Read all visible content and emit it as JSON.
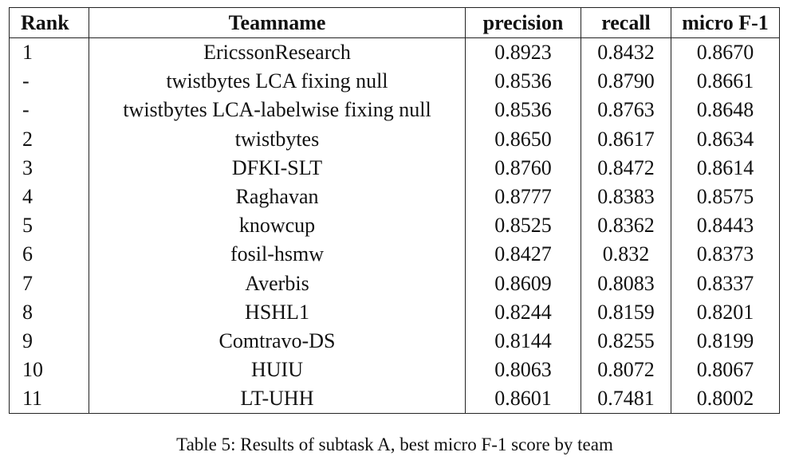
{
  "table": {
    "headers": {
      "rank": "Rank",
      "teamname": "Teamname",
      "precision": "precision",
      "recall": "recall",
      "micro_f1": "micro F-1"
    },
    "rows": [
      {
        "rank": "1",
        "team": "EricssonResearch",
        "precision": "0.8923",
        "recall": "0.8432",
        "micro_f1": "0.8670"
      },
      {
        "rank": "-",
        "team": "twistbytes LCA fixing null",
        "precision": "0.8536",
        "recall": "0.8790",
        "micro_f1": "0.8661"
      },
      {
        "rank": "-",
        "team": "twistbytes LCA-labelwise fixing null",
        "precision": "0.8536",
        "recall": "0.8763",
        "micro_f1": "0.8648"
      },
      {
        "rank": "2",
        "team": "twistbytes",
        "precision": "0.8650",
        "recall": "0.8617",
        "micro_f1": "0.8634"
      },
      {
        "rank": "3",
        "team": "DFKI-SLT",
        "precision": "0.8760",
        "recall": "0.8472",
        "micro_f1": "0.8614"
      },
      {
        "rank": "4",
        "team": "Raghavan",
        "precision": "0.8777",
        "recall": "0.8383",
        "micro_f1": "0.8575"
      },
      {
        "rank": "5",
        "team": "knowcup",
        "precision": "0.8525",
        "recall": "0.8362",
        "micro_f1": "0.8443"
      },
      {
        "rank": "6",
        "team": "fosil-hsmw",
        "precision": "0.8427",
        "recall": "0.832",
        "micro_f1": "0.8373"
      },
      {
        "rank": "7",
        "team": "Averbis",
        "precision": "0.8609",
        "recall": "0.8083",
        "micro_f1": "0.8337"
      },
      {
        "rank": "8",
        "team": "HSHL1",
        "precision": "0.8244",
        "recall": "0.8159",
        "micro_f1": "0.8201"
      },
      {
        "rank": "9",
        "team": "Comtravo-DS",
        "precision": "0.8144",
        "recall": "0.8255",
        "micro_f1": "0.8199"
      },
      {
        "rank": "10",
        "team": "HUIU",
        "precision": "0.8063",
        "recall": "0.8072",
        "micro_f1": "0.8067"
      },
      {
        "rank": "11",
        "team": "LT-UHH",
        "precision": "0.8601",
        "recall": "0.7481",
        "micro_f1": "0.8002"
      }
    ]
  },
  "caption": "Table 5: Results of subtask A, best micro F-1 score by team"
}
